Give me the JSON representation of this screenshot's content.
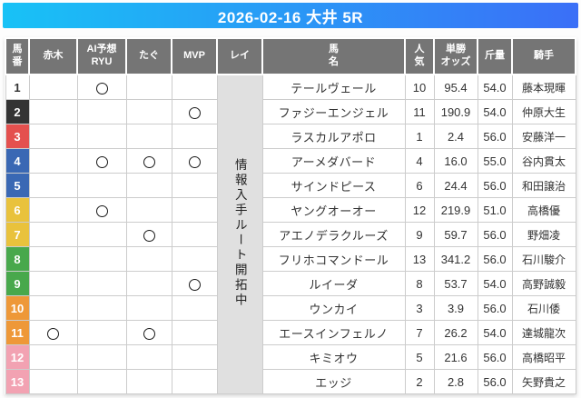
{
  "title": "2026-02-16 大井 5R",
  "theme": {
    "bar_gradient_left": "#18c2f6",
    "bar_gradient_right": "#3b6ff7",
    "header_bg": "#757575",
    "rei_banner_bg": "#e0e0e0",
    "grid_line": "#cccccc",
    "frame_colors": {
      "white": {
        "bg": "#ffffff",
        "fg": "#333333"
      },
      "black": {
        "bg": "#333333",
        "fg": "#ffffff"
      },
      "red": {
        "bg": "#e4504e",
        "fg": "#ffffff"
      },
      "blue": {
        "bg": "#3a68b4",
        "fg": "#ffffff"
      },
      "yellow": {
        "bg": "#e9c23c",
        "fg": "#ffffff"
      },
      "green": {
        "bg": "#48a84c",
        "fg": "#ffffff"
      },
      "orange": {
        "bg": "#ee9838",
        "fg": "#ffffff"
      },
      "pink": {
        "bg": "#f2a2b2",
        "fg": "#ffffff"
      }
    }
  },
  "columns": [
    {
      "key": "num",
      "label": "馬\n番"
    },
    {
      "key": "akagi",
      "label": "赤木"
    },
    {
      "key": "ai",
      "label": "AI予想\nRYU"
    },
    {
      "key": "tagu",
      "label": "たぐ"
    },
    {
      "key": "mvp",
      "label": "MVP"
    },
    {
      "key": "rei",
      "label": "レイ"
    },
    {
      "key": "name",
      "label": "馬\n名"
    },
    {
      "key": "pop",
      "label": "人\n気"
    },
    {
      "key": "odds",
      "label": "単勝\nオッズ"
    },
    {
      "key": "weight",
      "label": "斤量"
    },
    {
      "key": "jockey",
      "label": "騎手"
    }
  ],
  "rei_note": "情報入手ルート開拓中",
  "rows": [
    {
      "num": "1",
      "frame": "white",
      "picks": {
        "akagi": false,
        "ai": true,
        "tagu": false,
        "mvp": false
      },
      "name": "テールヴェール",
      "pop": "10",
      "odds": "95.4",
      "weight": "54.0",
      "jockey": "藤本現暉"
    },
    {
      "num": "2",
      "frame": "black",
      "picks": {
        "akagi": false,
        "ai": false,
        "tagu": false,
        "mvp": true
      },
      "name": "ファジーエンジェル",
      "pop": "11",
      "odds": "190.9",
      "weight": "54.0",
      "jockey": "仲原大生"
    },
    {
      "num": "3",
      "frame": "red",
      "picks": {
        "akagi": false,
        "ai": false,
        "tagu": false,
        "mvp": false
      },
      "name": "ラスカルアポロ",
      "pop": "1",
      "odds": "2.4",
      "weight": "56.0",
      "jockey": "安藤洋一"
    },
    {
      "num": "4",
      "frame": "blue",
      "picks": {
        "akagi": false,
        "ai": true,
        "tagu": true,
        "mvp": true
      },
      "name": "アーメダバード",
      "pop": "4",
      "odds": "16.0",
      "weight": "55.0",
      "jockey": "谷内貫太"
    },
    {
      "num": "5",
      "frame": "blue",
      "picks": {
        "akagi": false,
        "ai": false,
        "tagu": false,
        "mvp": false
      },
      "name": "サインドピース",
      "pop": "6",
      "odds": "24.4",
      "weight": "56.0",
      "jockey": "和田譲治"
    },
    {
      "num": "6",
      "frame": "yellow",
      "picks": {
        "akagi": false,
        "ai": true,
        "tagu": false,
        "mvp": false
      },
      "name": "ヤングオーオー",
      "pop": "12",
      "odds": "219.9",
      "weight": "51.0",
      "jockey": "高橋優"
    },
    {
      "num": "7",
      "frame": "yellow",
      "picks": {
        "akagi": false,
        "ai": false,
        "tagu": true,
        "mvp": false
      },
      "name": "アエノデラクルーズ",
      "pop": "9",
      "odds": "59.7",
      "weight": "56.0",
      "jockey": "野畑凌"
    },
    {
      "num": "8",
      "frame": "green",
      "picks": {
        "akagi": false,
        "ai": false,
        "tagu": false,
        "mvp": false
      },
      "name": "フリホコマンドール",
      "pop": "13",
      "odds": "341.2",
      "weight": "56.0",
      "jockey": "石川駿介"
    },
    {
      "num": "9",
      "frame": "green",
      "picks": {
        "akagi": false,
        "ai": false,
        "tagu": false,
        "mvp": true
      },
      "name": "ルイーダ",
      "pop": "8",
      "odds": "53.7",
      "weight": "54.0",
      "jockey": "高野誠毅"
    },
    {
      "num": "10",
      "frame": "orange",
      "picks": {
        "akagi": false,
        "ai": false,
        "tagu": false,
        "mvp": false
      },
      "name": "ウンカイ",
      "pop": "3",
      "odds": "3.9",
      "weight": "56.0",
      "jockey": "石川倭"
    },
    {
      "num": "11",
      "frame": "orange",
      "picks": {
        "akagi": true,
        "ai": false,
        "tagu": true,
        "mvp": false
      },
      "name": "エースインフェルノ",
      "pop": "7",
      "odds": "26.2",
      "weight": "54.0",
      "jockey": "達城龍次"
    },
    {
      "num": "12",
      "frame": "pink",
      "picks": {
        "akagi": false,
        "ai": false,
        "tagu": false,
        "mvp": false
      },
      "name": "キミオウ",
      "pop": "5",
      "odds": "21.6",
      "weight": "56.0",
      "jockey": "高橋昭平"
    },
    {
      "num": "13",
      "frame": "pink",
      "picks": {
        "akagi": false,
        "ai": false,
        "tagu": false,
        "mvp": false
      },
      "name": "エッジ",
      "pop": "2",
      "odds": "2.8",
      "weight": "56.0",
      "jockey": "矢野貴之"
    }
  ]
}
